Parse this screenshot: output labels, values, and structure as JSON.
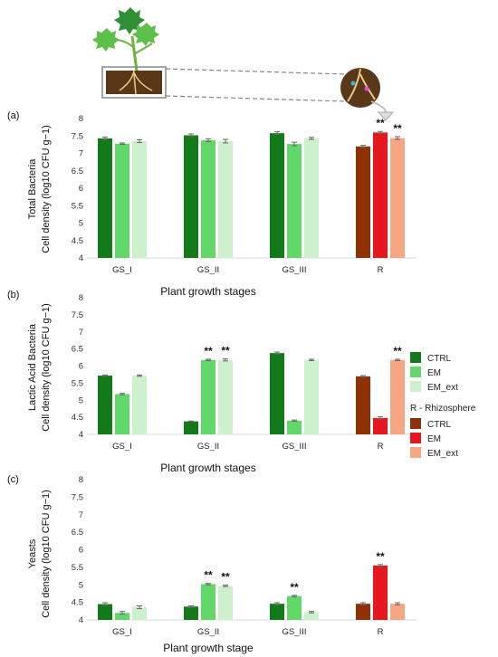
{
  "colors": {
    "CTRL": "#127a18",
    "EM": "#62d86b",
    "EM_ext": "#cdf0cd",
    "R_CTRL": "#8f3005",
    "R_EM": "#e4181e",
    "R_EM_ext": "#f7a681"
  },
  "legend": {
    "items": [
      "CTRL",
      "EM",
      "EM_ext"
    ],
    "rhizo_title": "R - Rhizosphere",
    "rhizo_items": [
      "CTRL",
      "EM",
      "EM_ext"
    ]
  },
  "chart_data": [
    {
      "type": "bar",
      "panel_label": "(a)",
      "ylabel_line1": "Total Bacteria",
      "ylabel_line2": "Cell density (log10 CFU g−1)",
      "xlabel": "Plant  growth stages",
      "ylim": [
        4,
        8
      ],
      "yticks": [
        "4",
        "4.5",
        "5",
        "5.5",
        "6",
        "6.5",
        "7",
        "7.5",
        "8"
      ],
      "categories": [
        "GS_I",
        "GS_II",
        "GS_III",
        "R"
      ],
      "series": [
        {
          "name": "CTRL",
          "values": [
            7.43,
            7.52,
            7.58,
            7.2
          ],
          "errors": [
            0.04,
            0.04,
            0.04,
            0.03
          ]
        },
        {
          "name": "EM",
          "values": [
            7.28,
            7.38,
            7.27,
            7.6
          ],
          "errors": [
            0.02,
            0.04,
            0.05,
            0.03
          ]
        },
        {
          "name": "EM_ext",
          "values": [
            7.35,
            7.35,
            7.43,
            7.44
          ],
          "errors": [
            0.04,
            0.05,
            0.03,
            0.04
          ]
        }
      ],
      "annotations": [
        {
          "category": "R",
          "series": "EM",
          "text": "**"
        },
        {
          "category": "R",
          "series": "EM_ext",
          "text": "**"
        }
      ]
    },
    {
      "type": "bar",
      "panel_label": "(b)",
      "ylabel_line1": "Lactic Acid Bacteria",
      "ylabel_line2": "Cell density (log10 CFU g−1)",
      "xlabel": "Plant growth stages",
      "ylim": [
        4,
        8
      ],
      "yticks": [
        "4",
        "4.5",
        "5",
        "5.5",
        "6",
        "6.5",
        "7",
        "7.5",
        "8"
      ],
      "categories": [
        "GS_I",
        "GS_II",
        "GS_III",
        "R"
      ],
      "series": [
        {
          "name": "CTRL",
          "values": [
            5.72,
            4.38,
            6.38,
            5.7
          ],
          "errors": [
            0.02,
            0.01,
            0.03,
            0.02
          ]
        },
        {
          "name": "EM",
          "values": [
            5.18,
            6.18,
            4.4,
            4.48
          ],
          "errors": [
            0.02,
            0.02,
            0.02,
            0.04
          ]
        },
        {
          "name": "EM_ext",
          "values": [
            5.72,
            6.18,
            6.18,
            6.18
          ],
          "errors": [
            0.02,
            0.03,
            0.02,
            0.02
          ]
        }
      ],
      "annotations": [
        {
          "category": "GS_II",
          "series": "EM",
          "text": "**"
        },
        {
          "category": "GS_II",
          "series": "EM_ext",
          "text": "**"
        },
        {
          "category": "R",
          "series": "EM_ext",
          "text": "**"
        }
      ]
    },
    {
      "type": "bar",
      "panel_label": "(c)",
      "ylabel_line1": "Yeasts",
      "ylabel_line2": "Cell density (log10 CFU g−1)",
      "xlabel": "Plant growth stage",
      "ylim": [
        4,
        8
      ],
      "yticks": [
        "4",
        "4.5",
        "5",
        "5.5",
        "6",
        "6.5",
        "7",
        "7.5",
        "8"
      ],
      "categories": [
        "GS_I",
        "GS_II",
        "GS_III",
        "R"
      ],
      "series": [
        {
          "name": "CTRL",
          "values": [
            4.45,
            4.38,
            4.46,
            4.46
          ],
          "errors": [
            0.04,
            0.02,
            0.03,
            0.03
          ]
        },
        {
          "name": "EM",
          "values": [
            4.2,
            5.02,
            4.68,
            5.55
          ],
          "errors": [
            0.04,
            0.02,
            0.02,
            0.03
          ]
        },
        {
          "name": "EM_ext",
          "values": [
            4.36,
            4.97,
            4.22,
            4.46
          ],
          "errors": [
            0.04,
            0.02,
            0.02,
            0.03
          ]
        }
      ],
      "annotations": [
        {
          "category": "GS_II",
          "series": "EM",
          "text": "**"
        },
        {
          "category": "GS_II",
          "series": "EM_ext",
          "text": "**"
        },
        {
          "category": "GS_III",
          "series": "EM",
          "text": "**"
        },
        {
          "category": "R",
          "series": "EM",
          "text": "**"
        }
      ]
    }
  ]
}
